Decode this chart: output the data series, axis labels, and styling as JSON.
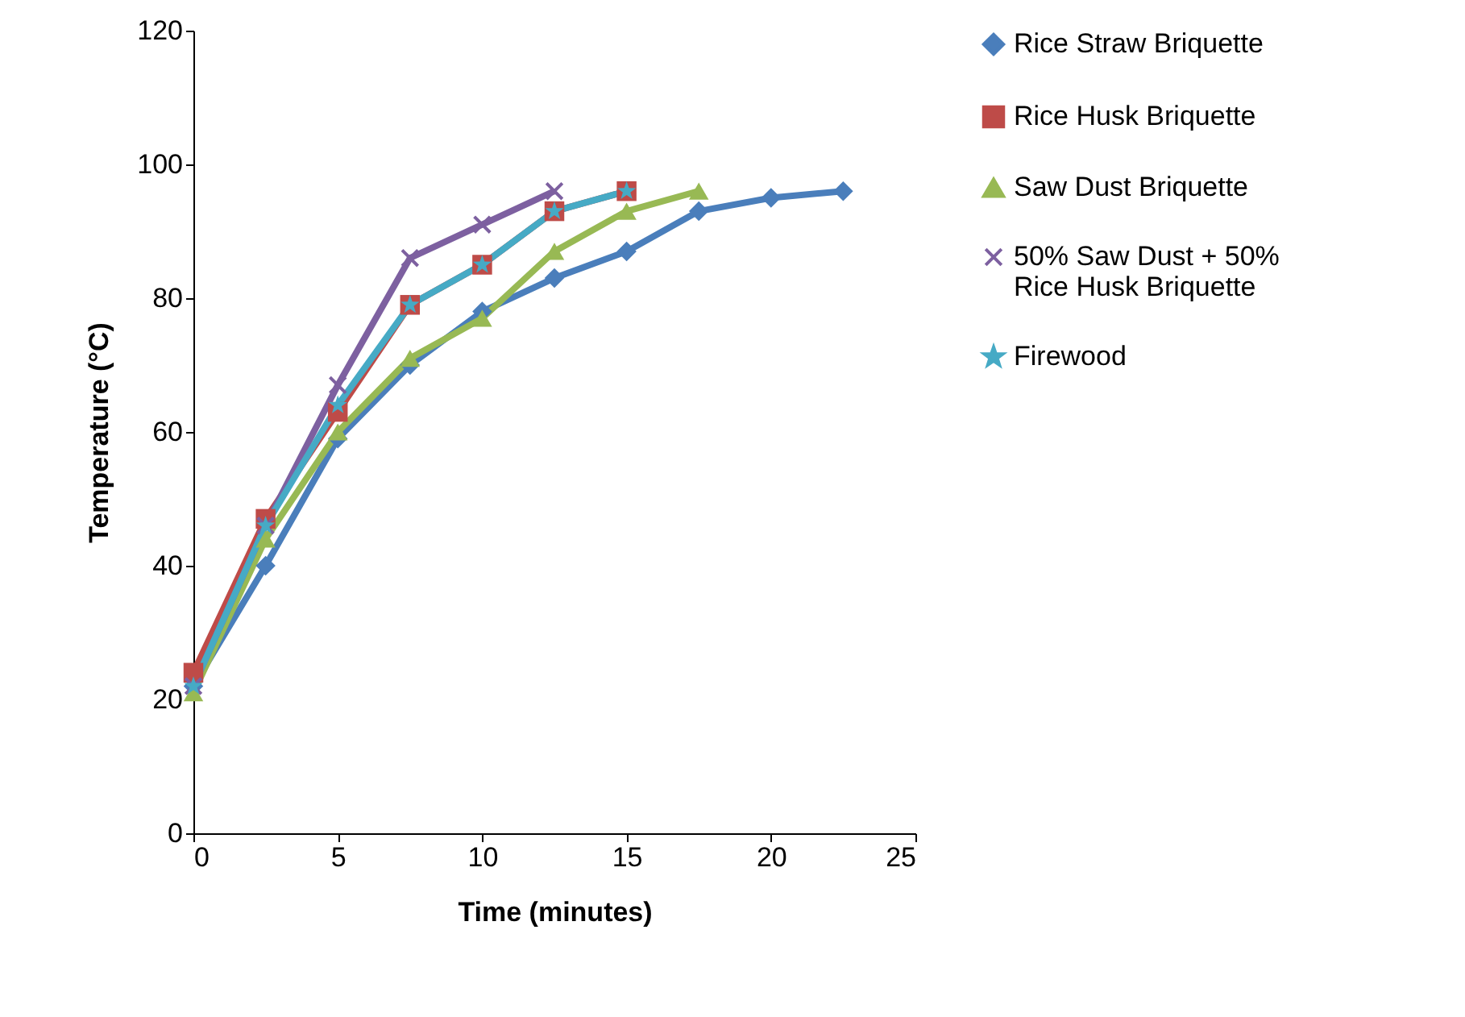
{
  "chart_data": {
    "type": "line",
    "xlabel": "Time (minutes)",
    "ylabel": "Temperature (°C)",
    "xlim": [
      0,
      25
    ],
    "xticks": [
      0,
      5,
      10,
      15,
      20,
      25
    ],
    "ylim": [
      0,
      120
    ],
    "yticks": [
      0,
      20,
      40,
      60,
      80,
      100,
      120
    ],
    "grid": false,
    "legend": "right",
    "series": [
      {
        "name": "Rice Straw Briquette",
        "color": "#4a7ebb",
        "marker": "diamond",
        "x": [
          0,
          2.5,
          5,
          7.5,
          10,
          12.5,
          15,
          17.5,
          20,
          22.5
        ],
        "values": [
          22,
          40,
          59,
          70,
          78,
          83,
          87,
          93,
          95,
          96
        ]
      },
      {
        "name": "Rice Husk Briquette",
        "color": "#be4b48",
        "marker": "square",
        "x": [
          0,
          2.5,
          5,
          7.5,
          10,
          12.5,
          15
        ],
        "values": [
          24,
          47,
          63,
          79,
          85,
          93,
          96
        ]
      },
      {
        "name": "Saw Dust Briquette",
        "color": "#98b954",
        "marker": "triangle",
        "x": [
          0,
          2.5,
          5,
          7.5,
          10,
          12.5,
          15,
          17.5
        ],
        "values": [
          21,
          44,
          60,
          71,
          77,
          87,
          93,
          96
        ]
      },
      {
        "name": "50% Saw Dust + 50% Rice Husk Briquette",
        "color": "#7d60a0",
        "marker": "cross",
        "x": [
          0,
          2.5,
          5,
          7.5,
          10,
          12.5
        ],
        "values": [
          22,
          46,
          67,
          86,
          91,
          96
        ]
      },
      {
        "name": "Firewood",
        "color": "#46aac5",
        "marker": "star",
        "x": [
          0,
          2.5,
          5,
          7.5,
          10,
          12.5,
          15
        ],
        "values": [
          22,
          46,
          64,
          79,
          85,
          93,
          96
        ]
      }
    ]
  }
}
